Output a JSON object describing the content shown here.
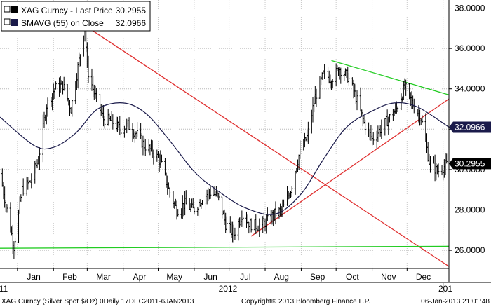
{
  "chart_data": {
    "type": "line",
    "chart_style": "bar-ohlc",
    "legend": {
      "placement": "top-left",
      "entries": [
        {
          "label": "XAG Curncy - Last Price",
          "value": "30.2955",
          "color": "#000000"
        },
        {
          "label": "SMAVG (55) on Close",
          "value": "32.0966",
          "color": "#1a1a4a"
        }
      ]
    },
    "y_axis": {
      "side": "right",
      "range": [
        25.1,
        38.4
      ],
      "ticks": [
        "38.0000",
        "36.0000",
        "34.0000",
        "32.0000",
        "30.0000",
        "28.0000",
        "26.0000"
      ],
      "tick_values": [
        38,
        36,
        34,
        32,
        30,
        28,
        26
      ],
      "grid": true
    },
    "x_axis": {
      "range": [
        "2011-12-17",
        "2013-01-06"
      ],
      "month_labels": [
        {
          "label": "Jan",
          "date": "2012-01-15"
        },
        {
          "label": "Feb",
          "date": "2012-02-15"
        },
        {
          "label": "Mar",
          "date": "2012-03-15"
        },
        {
          "label": "Apr",
          "date": "2012-04-15"
        },
        {
          "label": "May",
          "date": "2012-05-15"
        },
        {
          "label": "Jun",
          "date": "2012-06-15"
        },
        {
          "label": "Jul",
          "date": "2012-07-15"
        },
        {
          "label": "Aug",
          "date": "2012-08-15"
        },
        {
          "label": "Sep",
          "date": "2012-09-15"
        },
        {
          "label": "Oct",
          "date": "2012-10-15"
        },
        {
          "label": "Nov",
          "date": "2012-11-15"
        },
        {
          "label": "Dec",
          "date": "2012-12-15"
        }
      ],
      "year_labels": [
        {
          "label": "11",
          "date": "2011-12-20"
        },
        {
          "label": "2012",
          "date": "2012-06-30"
        },
        {
          "label": "201",
          "date": "2013-01-03"
        }
      ],
      "grid": true
    },
    "price_series": {
      "name": "XAG Curncy - Last Price",
      "color": "#000000",
      "last_value": "30.2955",
      "points": [
        {
          "x": "2011-12-17",
          "y": 29.8
        },
        {
          "x": "2011-12-29",
          "y": 26.2
        },
        {
          "x": "2012-01-05",
          "y": 29.0
        },
        {
          "x": "2012-01-12",
          "y": 29.4
        },
        {
          "x": "2012-01-19",
          "y": 30.5
        },
        {
          "x": "2012-01-26",
          "y": 33.2
        },
        {
          "x": "2012-02-02",
          "y": 34.0
        },
        {
          "x": "2012-02-09",
          "y": 34.2
        },
        {
          "x": "2012-02-16",
          "y": 33.0
        },
        {
          "x": "2012-02-23",
          "y": 35.4
        },
        {
          "x": "2012-02-28",
          "y": 37.2
        },
        {
          "x": "2012-03-01",
          "y": 35.0
        },
        {
          "x": "2012-03-08",
          "y": 33.6
        },
        {
          "x": "2012-03-15",
          "y": 32.5
        },
        {
          "x": "2012-03-22",
          "y": 32.4
        },
        {
          "x": "2012-03-29",
          "y": 32.0
        },
        {
          "x": "2012-04-05",
          "y": 32.2
        },
        {
          "x": "2012-04-12",
          "y": 31.8
        },
        {
          "x": "2012-04-19",
          "y": 31.2
        },
        {
          "x": "2012-04-26",
          "y": 30.9
        },
        {
          "x": "2012-05-03",
          "y": 30.4
        },
        {
          "x": "2012-05-10",
          "y": 29.0
        },
        {
          "x": "2012-05-17",
          "y": 28.0
        },
        {
          "x": "2012-05-24",
          "y": 28.3
        },
        {
          "x": "2012-05-31",
          "y": 28.0
        },
        {
          "x": "2012-06-07",
          "y": 28.5
        },
        {
          "x": "2012-06-14",
          "y": 28.9
        },
        {
          "x": "2012-06-21",
          "y": 28.7
        },
        {
          "x": "2012-06-28",
          "y": 27.3
        },
        {
          "x": "2012-07-05",
          "y": 26.8
        },
        {
          "x": "2012-07-12",
          "y": 27.8
        },
        {
          "x": "2012-07-19",
          "y": 27.3
        },
        {
          "x": "2012-07-26",
          "y": 27.2
        },
        {
          "x": "2012-08-02",
          "y": 27.4
        },
        {
          "x": "2012-08-09",
          "y": 27.8
        },
        {
          "x": "2012-08-16",
          "y": 28.0
        },
        {
          "x": "2012-08-23",
          "y": 29.0
        },
        {
          "x": "2012-08-30",
          "y": 30.7
        },
        {
          "x": "2012-09-06",
          "y": 31.6
        },
        {
          "x": "2012-09-13",
          "y": 33.6
        },
        {
          "x": "2012-09-20",
          "y": 34.7
        },
        {
          "x": "2012-09-27",
          "y": 34.5
        },
        {
          "x": "2012-10-04",
          "y": 35.0
        },
        {
          "x": "2012-10-11",
          "y": 34.6
        },
        {
          "x": "2012-10-18",
          "y": 33.6
        },
        {
          "x": "2012-10-25",
          "y": 32.3
        },
        {
          "x": "2012-11-01",
          "y": 31.5
        },
        {
          "x": "2012-11-08",
          "y": 32.0
        },
        {
          "x": "2012-11-15",
          "y": 32.5
        },
        {
          "x": "2012-11-22",
          "y": 33.0
        },
        {
          "x": "2012-11-29",
          "y": 34.1
        },
        {
          "x": "2012-12-06",
          "y": 33.2
        },
        {
          "x": "2012-12-13",
          "y": 32.6
        },
        {
          "x": "2012-12-20",
          "y": 30.4
        },
        {
          "x": "2012-12-27",
          "y": 29.9
        },
        {
          "x": "2013-01-03",
          "y": 30.2
        },
        {
          "x": "2013-01-06",
          "y": 30.3
        }
      ]
    },
    "sma_series": {
      "name": "SMAVG (55) on Close",
      "color": "#1a1a4a",
      "last_value": "32.0966",
      "points": [
        {
          "x": "2011-12-17",
          "y": 32.6
        },
        {
          "x": "2012-01-15",
          "y": 31.2
        },
        {
          "x": "2012-02-01",
          "y": 31.1
        },
        {
          "x": "2012-02-20",
          "y": 31.8
        },
        {
          "x": "2012-03-10",
          "y": 33.0
        },
        {
          "x": "2012-04-01",
          "y": 33.3
        },
        {
          "x": "2012-04-20",
          "y": 32.8
        },
        {
          "x": "2012-05-10",
          "y": 31.5
        },
        {
          "x": "2012-06-01",
          "y": 29.9
        },
        {
          "x": "2012-06-20",
          "y": 29.0
        },
        {
          "x": "2012-07-15",
          "y": 28.1
        },
        {
          "x": "2012-08-10",
          "y": 27.8
        },
        {
          "x": "2012-09-01",
          "y": 28.8
        },
        {
          "x": "2012-09-20",
          "y": 30.5
        },
        {
          "x": "2012-10-10",
          "y": 32.1
        },
        {
          "x": "2012-11-01",
          "y": 32.9
        },
        {
          "x": "2012-11-20",
          "y": 33.3
        },
        {
          "x": "2012-12-10",
          "y": 33.1
        },
        {
          "x": "2013-01-06",
          "y": 32.1
        }
      ]
    },
    "trend_lines": [
      {
        "name": "red-downtrend-line",
        "color": "#e03030",
        "from": {
          "x": "2012-01-31",
          "y": 38.2
        },
        "to": {
          "x": "2013-01-06",
          "y": 25.2
        }
      },
      {
        "name": "red-uptrend-line",
        "color": "#e03030",
        "from": {
          "x": "2012-07-20",
          "y": 26.7
        },
        "to": {
          "x": "2013-01-06",
          "y": 33.5
        }
      },
      {
        "name": "green-top-line",
        "color": "#22cc22",
        "from": {
          "x": "2012-09-27",
          "y": 35.4
        },
        "to": {
          "x": "2013-01-06",
          "y": 33.7
        }
      },
      {
        "name": "green-support-line",
        "color": "#22cc22",
        "from": {
          "x": "2011-12-17",
          "y": 26.1
        },
        "to": {
          "x": "2013-01-06",
          "y": 26.2
        }
      }
    ],
    "value_tags": [
      {
        "label": "32.0966",
        "value": 32.0966,
        "bg": "#1a1a4a",
        "fg": "#ffffff"
      },
      {
        "label": "30.2955",
        "value": 30.2955,
        "bg": "#000000",
        "fg": "#ffffff"
      }
    ]
  },
  "footer": {
    "left": "XAG Curncy (Silver Spot $/Oz) 0Daily 17DEC2011-6JAN2013",
    "center": "Copyright© 2013 Bloomberg Finance L.P.",
    "right": "06-Jan-2013 21:01:48"
  }
}
